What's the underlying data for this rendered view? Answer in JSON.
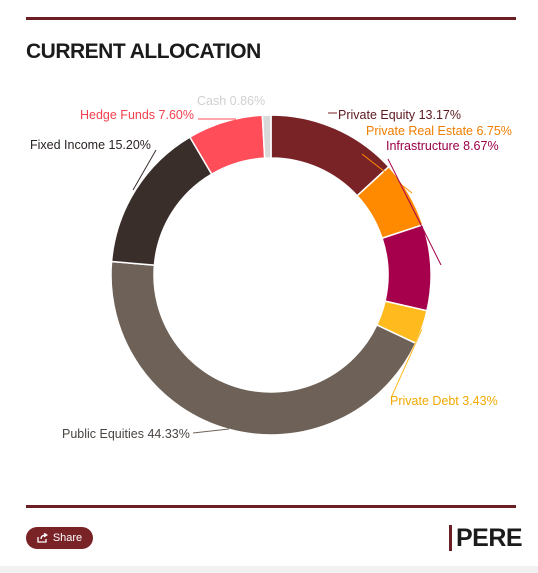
{
  "header": {
    "title": "CURRENT ALLOCATION"
  },
  "chart_data": {
    "type": "pie",
    "donut": true,
    "start": "top, clockwise",
    "slices": [
      {
        "label": "Private Equity",
        "value": 13.17,
        "text": "Private Equity 13.17%",
        "color": "#7a2327",
        "text_color": "#5a1a1e"
      },
      {
        "label": "Private Real Estate",
        "value": 6.75,
        "text": "Private Real Estate 6.75%",
        "color": "#ff8a00",
        "text_color": "#f07d00"
      },
      {
        "label": "Infrastructure",
        "value": 8.67,
        "text": "Infrastructure 8.67%",
        "color": "#a6004d",
        "text_color": "#9b0049"
      },
      {
        "label": "Private Debt",
        "value": 3.43,
        "text": "Private Debt 3.43%",
        "color": "#ffba1e",
        "text_color": "#f2a900"
      },
      {
        "label": "Public Equities",
        "value": 44.33,
        "text": "Public Equities 44.33%",
        "color": "#6e6258",
        "text_color": "#4a4440"
      },
      {
        "label": "Fixed Income",
        "value": 15.2,
        "text": "Fixed Income 15.20%",
        "color": "#3a2e2b",
        "text_color": "#2a2422"
      },
      {
        "label": "Hedge Funds",
        "value": 7.6,
        "text": "Hedge Funds 7.60%",
        "color": "#ff4d5a",
        "text_color": "#f2414e"
      },
      {
        "label": "Cash",
        "value": 0.86,
        "text": "Cash 0.86%",
        "color": "#d9d9d9",
        "text_color": "#d0d0d0"
      }
    ]
  },
  "footer": {
    "share_label": "Share",
    "logo_text": "PERE"
  }
}
